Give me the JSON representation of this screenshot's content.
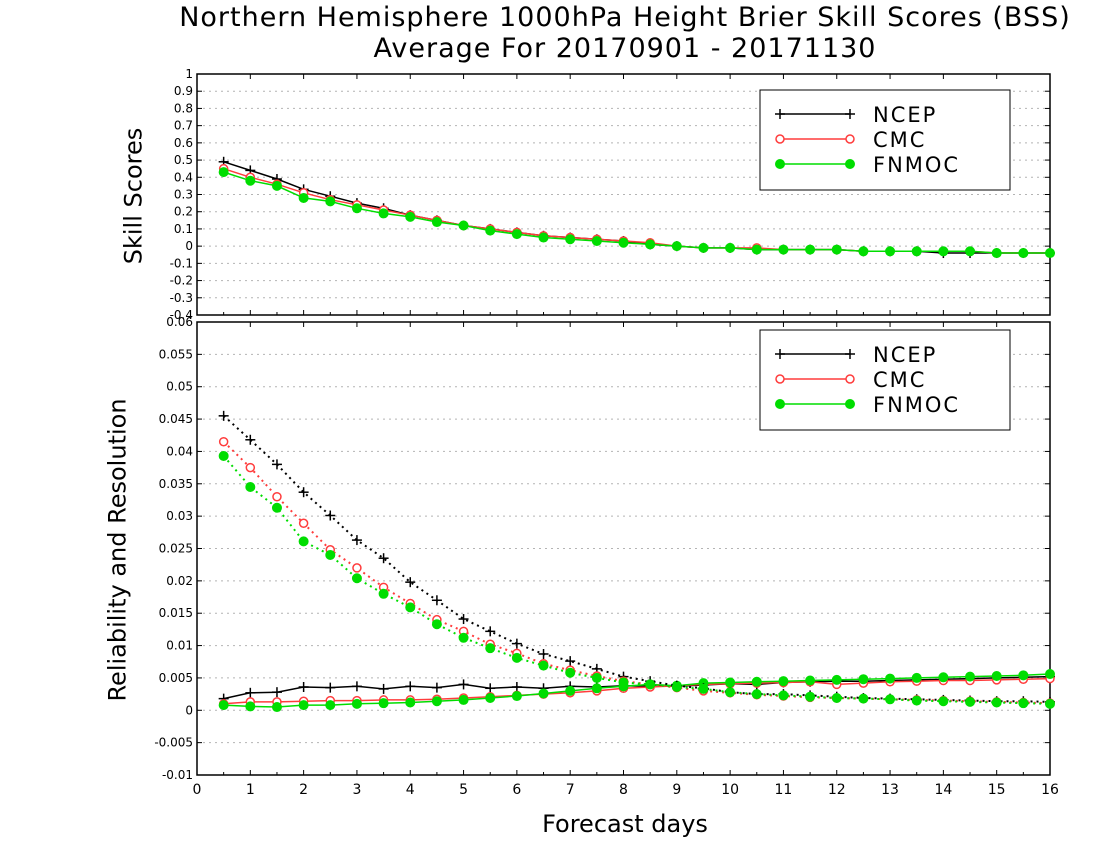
{
  "figure": {
    "title": "Northern Hemisphere 1000hPa Height Brier Skill Scores (BSS)",
    "subtitle": "Average For 20170901 - 20171130",
    "xlabel": "Forecast days"
  },
  "chart_data": [
    {
      "type": "line",
      "ylabel": "Skill Scores",
      "x": [
        0.5,
        1,
        1.5,
        2,
        2.5,
        3,
        3.5,
        4,
        4.5,
        5,
        5.5,
        6,
        6.5,
        7,
        7.5,
        8,
        8.5,
        9,
        9.5,
        10,
        10.5,
        11,
        11.5,
        12,
        12.5,
        13,
        13.5,
        14,
        14.5,
        15,
        15.5,
        16
      ],
      "xlim": [
        0,
        16
      ],
      "ylim": [
        -0.4,
        1
      ],
      "xticks": [
        "0",
        "1",
        "2",
        "3",
        "4",
        "5",
        "6",
        "7",
        "8",
        "9",
        "10",
        "11",
        "12",
        "13",
        "14",
        "15",
        "16"
      ],
      "yticks": [
        "-0.4",
        "-0.3",
        "-0.2",
        "-0.1",
        "0",
        "0.1",
        "0.2",
        "0.3",
        "0.4",
        "0.5",
        "0.6",
        "0.7",
        "0.8",
        "0.9",
        "1"
      ],
      "grid": true,
      "legend_position": "top-right",
      "series": [
        {
          "name": "NCEP",
          "color": "#000000",
          "marker": "plus",
          "line": "solid",
          "values": [
            0.49,
            0.44,
            0.39,
            0.33,
            0.29,
            0.25,
            0.22,
            0.18,
            0.15,
            0.12,
            0.1,
            0.08,
            0.06,
            0.05,
            0.04,
            0.03,
            0.01,
            0.0,
            -0.01,
            -0.01,
            -0.02,
            -0.02,
            -0.02,
            -0.02,
            -0.03,
            -0.03,
            -0.03,
            -0.04,
            -0.04,
            -0.04,
            -0.04,
            -0.04
          ]
        },
        {
          "name": "CMC",
          "color": "#ff3c3c",
          "marker": "open-circle",
          "line": "solid",
          "values": [
            0.45,
            0.4,
            0.36,
            0.31,
            0.27,
            0.24,
            0.21,
            0.18,
            0.15,
            0.12,
            0.1,
            0.08,
            0.06,
            0.05,
            0.04,
            0.03,
            0.02,
            0.0,
            -0.01,
            -0.01,
            -0.01,
            -0.02,
            -0.02,
            -0.02,
            -0.03,
            -0.03,
            -0.03,
            -0.03,
            -0.03,
            -0.04,
            -0.04,
            -0.04
          ]
        },
        {
          "name": "FNMOC",
          "color": "#00dd00",
          "marker": "filled-circle",
          "line": "solid",
          "values": [
            0.43,
            0.38,
            0.35,
            0.28,
            0.26,
            0.22,
            0.19,
            0.17,
            0.14,
            0.12,
            0.09,
            0.07,
            0.05,
            0.04,
            0.03,
            0.02,
            0.01,
            0.0,
            -0.01,
            -0.01,
            -0.02,
            -0.02,
            -0.02,
            -0.02,
            -0.03,
            -0.03,
            -0.03,
            -0.03,
            -0.03,
            -0.04,
            -0.04,
            -0.04
          ]
        }
      ]
    },
    {
      "type": "line",
      "ylabel": "Reliability and Resolution",
      "x": [
        0.5,
        1,
        1.5,
        2,
        2.5,
        3,
        3.5,
        4,
        4.5,
        5,
        5.5,
        6,
        6.5,
        7,
        7.5,
        8,
        8.5,
        9,
        9.5,
        10,
        10.5,
        11,
        11.5,
        12,
        12.5,
        13,
        13.5,
        14,
        14.5,
        15,
        15.5,
        16
      ],
      "xlim": [
        0,
        16
      ],
      "ylim": [
        -0.01,
        0.06
      ],
      "xticks": [
        "0",
        "1",
        "2",
        "3",
        "4",
        "5",
        "6",
        "7",
        "8",
        "9",
        "10",
        "11",
        "12",
        "13",
        "14",
        "15",
        "16"
      ],
      "yticks": [
        "-0.01",
        "-0.005",
        "0",
        "0.005",
        "0.01",
        "0.015",
        "0.02",
        "0.025",
        "0.03",
        "0.035",
        "0.04",
        "0.045",
        "0.05",
        "0.055",
        "0.06"
      ],
      "grid": true,
      "legend_position": "top-right",
      "legend": [
        {
          "name": "NCEP",
          "color": "#000000",
          "marker": "plus"
        },
        {
          "name": "CMC",
          "color": "#ff3c3c",
          "marker": "open-circle"
        },
        {
          "name": "FNMOC",
          "color": "#00dd00",
          "marker": "filled-circle"
        }
      ],
      "series": [
        {
          "name": "NCEP",
          "color": "#000000",
          "marker": "plus",
          "line": "solid",
          "values": [
            0.0018,
            0.0027,
            0.0028,
            0.0036,
            0.0035,
            0.0037,
            0.0033,
            0.0037,
            0.0035,
            0.004,
            0.0034,
            0.0036,
            0.0034,
            0.0037,
            0.0036,
            0.0038,
            0.0037,
            0.0037,
            0.0039,
            0.0041,
            0.004,
            0.0043,
            0.0044,
            0.0045,
            0.0045,
            0.0046,
            0.0047,
            0.0048,
            0.0049,
            0.005,
            0.0051,
            0.0052
          ]
        },
        {
          "name": "CMC",
          "color": "#ff3c3c",
          "marker": "open-circle",
          "line": "solid",
          "values": [
            0.001,
            0.0013,
            0.0013,
            0.0014,
            0.0015,
            0.0015,
            0.0016,
            0.0016,
            0.0017,
            0.0019,
            0.0021,
            0.0023,
            0.0025,
            0.0027,
            0.003,
            0.0034,
            0.0036,
            0.0038,
            0.004,
            0.0041,
            0.0042,
            0.0043,
            0.0044,
            0.004,
            0.0042,
            0.0044,
            0.0045,
            0.0046,
            0.0046,
            0.0047,
            0.0048,
            0.0049
          ]
        },
        {
          "name": "FNMOC",
          "color": "#00dd00",
          "marker": "filled-circle",
          "line": "solid",
          "values": [
            0.0008,
            0.0006,
            0.0005,
            0.0008,
            0.0008,
            0.001,
            0.0011,
            0.0012,
            0.0014,
            0.0016,
            0.0019,
            0.0022,
            0.0026,
            0.003,
            0.0034,
            0.0037,
            0.004,
            0.0038,
            0.0042,
            0.0043,
            0.0044,
            0.0045,
            0.0046,
            0.0047,
            0.0048,
            0.0049,
            0.005,
            0.0051,
            0.0052,
            0.0053,
            0.0054,
            0.0056
          ]
        },
        {
          "name": "",
          "color": "#000000",
          "marker": "plus",
          "line": "dotted",
          "values": [
            0.0455,
            0.0418,
            0.038,
            0.0337,
            0.0301,
            0.0263,
            0.0235,
            0.0198,
            0.017,
            0.0141,
            0.0122,
            0.0103,
            0.0087,
            0.0076,
            0.0064,
            0.0052,
            0.0045,
            0.0038,
            0.0034,
            0.0028,
            0.0025,
            0.0025,
            0.0023,
            0.0021,
            0.0019,
            0.0018,
            0.0017,
            0.0016,
            0.0015,
            0.0014,
            0.0014,
            0.0013
          ]
        },
        {
          "name": "",
          "color": "#ff3c3c",
          "marker": "open-circle",
          "line": "dotted",
          "values": [
            0.0415,
            0.0375,
            0.033,
            0.0289,
            0.0248,
            0.022,
            0.019,
            0.0165,
            0.014,
            0.0122,
            0.0102,
            0.0088,
            0.0072,
            0.0062,
            0.0053,
            0.0045,
            0.004,
            0.0035,
            0.003,
            0.0027,
            0.0024,
            0.0022,
            0.002,
            0.0019,
            0.0018,
            0.0017,
            0.0016,
            0.0015,
            0.0014,
            0.0013,
            0.0012,
            0.0011
          ]
        },
        {
          "name": "",
          "color": "#00dd00",
          "marker": "filled-circle",
          "line": "dotted",
          "values": [
            0.0393,
            0.0345,
            0.0313,
            0.0261,
            0.024,
            0.0204,
            0.018,
            0.0159,
            0.0133,
            0.0112,
            0.0096,
            0.0081,
            0.0069,
            0.0058,
            0.005,
            0.0043,
            0.004,
            0.0036,
            0.0033,
            0.0028,
            0.0025,
            0.0023,
            0.0021,
            0.0019,
            0.0018,
            0.0017,
            0.0015,
            0.0014,
            0.0013,
            0.0012,
            0.0011,
            0.001
          ]
        }
      ]
    }
  ]
}
